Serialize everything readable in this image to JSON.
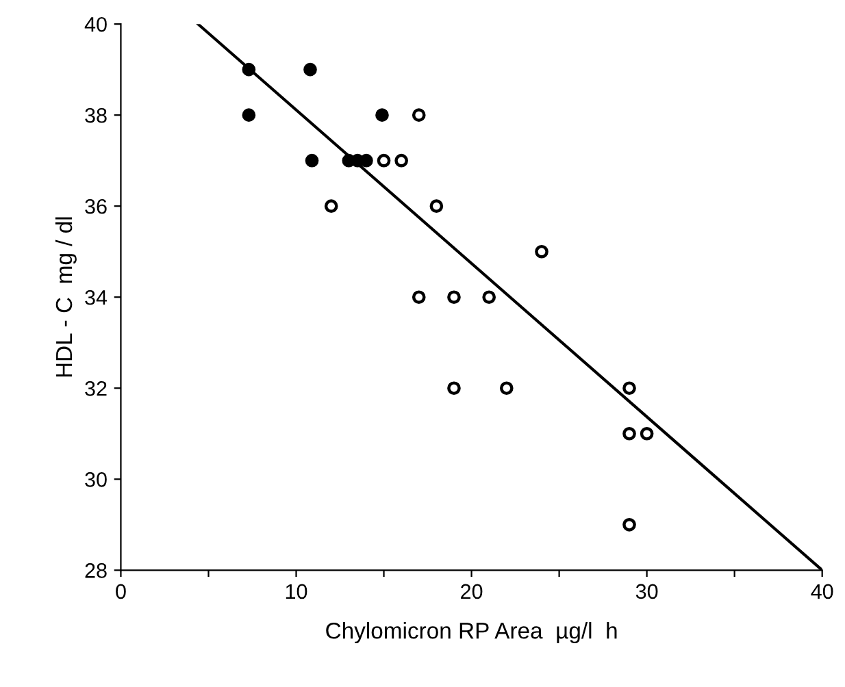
{
  "chart_data": {
    "type": "scatter",
    "xlabel": "Chylomicron RP Area  µg/l  h",
    "ylabel": "HDL - C  mg / dl",
    "xlim": [
      0,
      40
    ],
    "xticks": [
      0,
      {
        "value": 5,
        "label": null
      },
      10,
      {
        "value": 15,
        "label": null
      },
      20,
      {
        "value": 25,
        "label": null
      },
      30,
      {
        "value": 35,
        "label": null
      },
      40
    ],
    "ylim": [
      28,
      40
    ],
    "yticks": [
      28,
      30,
      32,
      34,
      36,
      38,
      40
    ],
    "grid": false,
    "marker": "circle",
    "series": [
      {
        "color": "#000000",
        "x": [
          7.3,
          7.3,
          10.8,
          10.9,
          13,
          13.5,
          14,
          14.9
        ],
        "values": [
          39,
          38,
          39,
          37,
          37,
          37,
          37,
          38
        ]
      },
      {
        "color": "#ffffff",
        "x": [
          17,
          15,
          16,
          12,
          18,
          24,
          17,
          19,
          21,
          19,
          22,
          29,
          29,
          30,
          29
        ],
        "values": [
          38,
          37,
          37,
          36,
          36,
          35,
          34,
          34,
          34,
          32,
          32,
          32,
          31,
          31,
          29
        ]
      },
      {
        "type": "line",
        "color": "#000000",
        "x": [
          4.4,
          40
        ],
        "values": [
          40,
          28
        ],
        "marker": "none",
        "line_style": "solid"
      }
    ]
  }
}
